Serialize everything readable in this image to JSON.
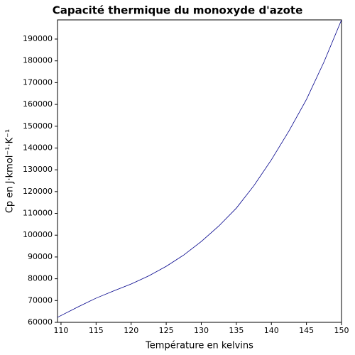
{
  "chart_data": {
    "type": "line",
    "title": "Capacité thermique du monoxyde d'azote",
    "xlabel": "Température en kelvins",
    "ylabel": "Cp en J·kmol⁻¹·K⁻¹",
    "x": [
      109.5,
      112.5,
      115,
      117.5,
      120,
      122.5,
      125,
      127.5,
      130,
      132.5,
      135,
      137.5,
      140,
      142.5,
      145,
      147.5,
      150
    ],
    "series": [
      {
        "name": "Cp",
        "color": "#00008b",
        "values": [
          62300,
          67200,
          71100,
          74400,
          77600,
          81300,
          85700,
          90900,
          97100,
          104200,
          112400,
          122700,
          134600,
          147800,
          162300,
          179500,
          198800
        ]
      }
    ],
    "xlim": [
      109.5,
      150
    ],
    "ylim": [
      60000,
      198800
    ],
    "xticks": [
      110,
      115,
      120,
      125,
      130,
      135,
      140,
      145,
      150
    ],
    "yticks": [
      60000,
      70000,
      80000,
      90000,
      100000,
      110000,
      120000,
      130000,
      140000,
      150000,
      160000,
      170000,
      180000,
      190000
    ],
    "grid": false
  }
}
